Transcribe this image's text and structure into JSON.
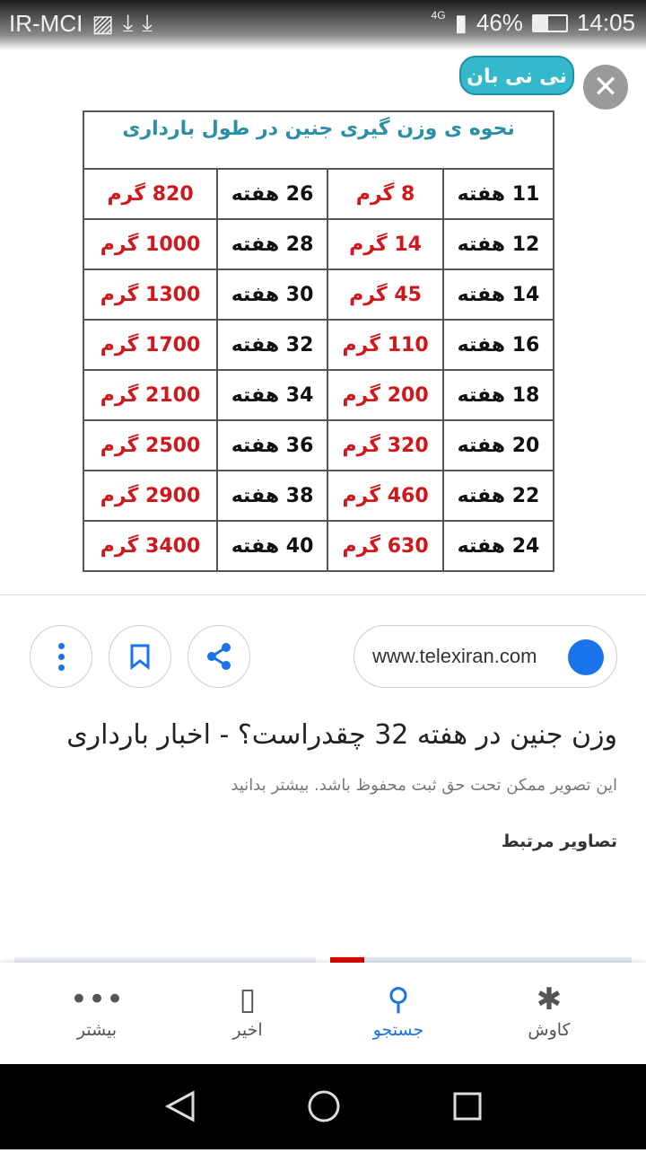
{
  "status_bar": {
    "carrier": "IR-MCI",
    "network": "4G",
    "battery": "46%",
    "battery_level": 0.46,
    "time": "14:05"
  },
  "image": {
    "logo_text": "نی نی بان",
    "table_title": "نحوه ی وزن گیری جنین در طول بارداری",
    "rows": [
      {
        "week1": "11 هفته",
        "weight1": "8 گرم",
        "week2": "26 هفته",
        "weight2": "820 گرم"
      },
      {
        "week1": "12 هفته",
        "weight1": "14 گرم",
        "week2": "28 هفته",
        "weight2": "1000 گرم"
      },
      {
        "week1": "14 هفته",
        "weight1": "45 گرم",
        "week2": "30 هفته",
        "weight2": "1300 گرم"
      },
      {
        "week1": "16 هفته",
        "weight1": "110 گرم",
        "week2": "32 هفته",
        "weight2": "1700 گرم"
      },
      {
        "week1": "18 هفته",
        "weight1": "200 گرم",
        "week2": "34 هفته",
        "weight2": "2100 گرم"
      },
      {
        "week1": "20 هفته",
        "weight1": "320 گرم",
        "week2": "36 هفته",
        "weight2": "2500 گرم"
      },
      {
        "week1": "22 هفته",
        "weight1": "460 گرم",
        "week2": "38 هفته",
        "weight2": "2900 گرم"
      },
      {
        "week1": "24 هفته",
        "weight1": "630 گرم",
        "week2": "40 هفته",
        "weight2": "3400 گرم"
      }
    ]
  },
  "result": {
    "source": "www.telexiran.com",
    "title": "وزن جنین در هفته 32 چقدراست؟ - اخبار بارداری",
    "copyright_note": "این تصویر ممکن تحت حق ثبت محفوظ باشد. بیشتر بدانید",
    "related_heading": "تصاویر مرتبط"
  },
  "bottom_nav": [
    {
      "label": "بیشتر",
      "icon": "more-icon"
    },
    {
      "label": "اخیر",
      "icon": "recent-icon"
    },
    {
      "label": "جستجو",
      "icon": "search-icon",
      "active": true
    },
    {
      "label": "کاوش",
      "icon": "discover-icon"
    }
  ],
  "accent": "#1a73e8"
}
